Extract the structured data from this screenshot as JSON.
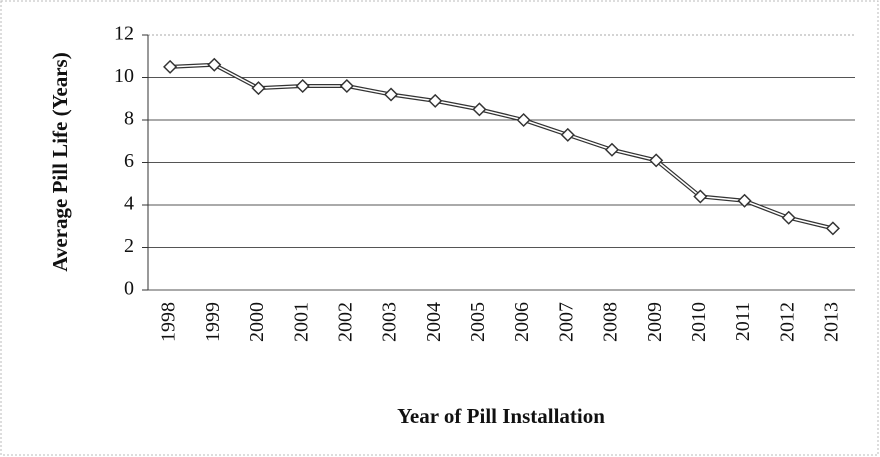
{
  "chart_data": {
    "type": "line",
    "x_label": "Year of Pill Installation",
    "y_label": "Average Pill Life (Years)",
    "categories": [
      "1998",
      "1999",
      "2000",
      "2001",
      "2002",
      "2003",
      "2004",
      "2005",
      "2006",
      "2007",
      "2008",
      "2009",
      "2010",
      "2011",
      "2012",
      "2013"
    ],
    "values": [
      10.5,
      10.6,
      9.5,
      9.6,
      9.6,
      9.2,
      8.9,
      8.5,
      8.0,
      7.3,
      6.6,
      6.1,
      4.4,
      4.2,
      3.4,
      2.9
    ],
    "color": "#333333",
    "ylim": [
      0,
      12
    ],
    "yticks": [
      0,
      2,
      4,
      6,
      8,
      10,
      12
    ],
    "grid": true
  }
}
